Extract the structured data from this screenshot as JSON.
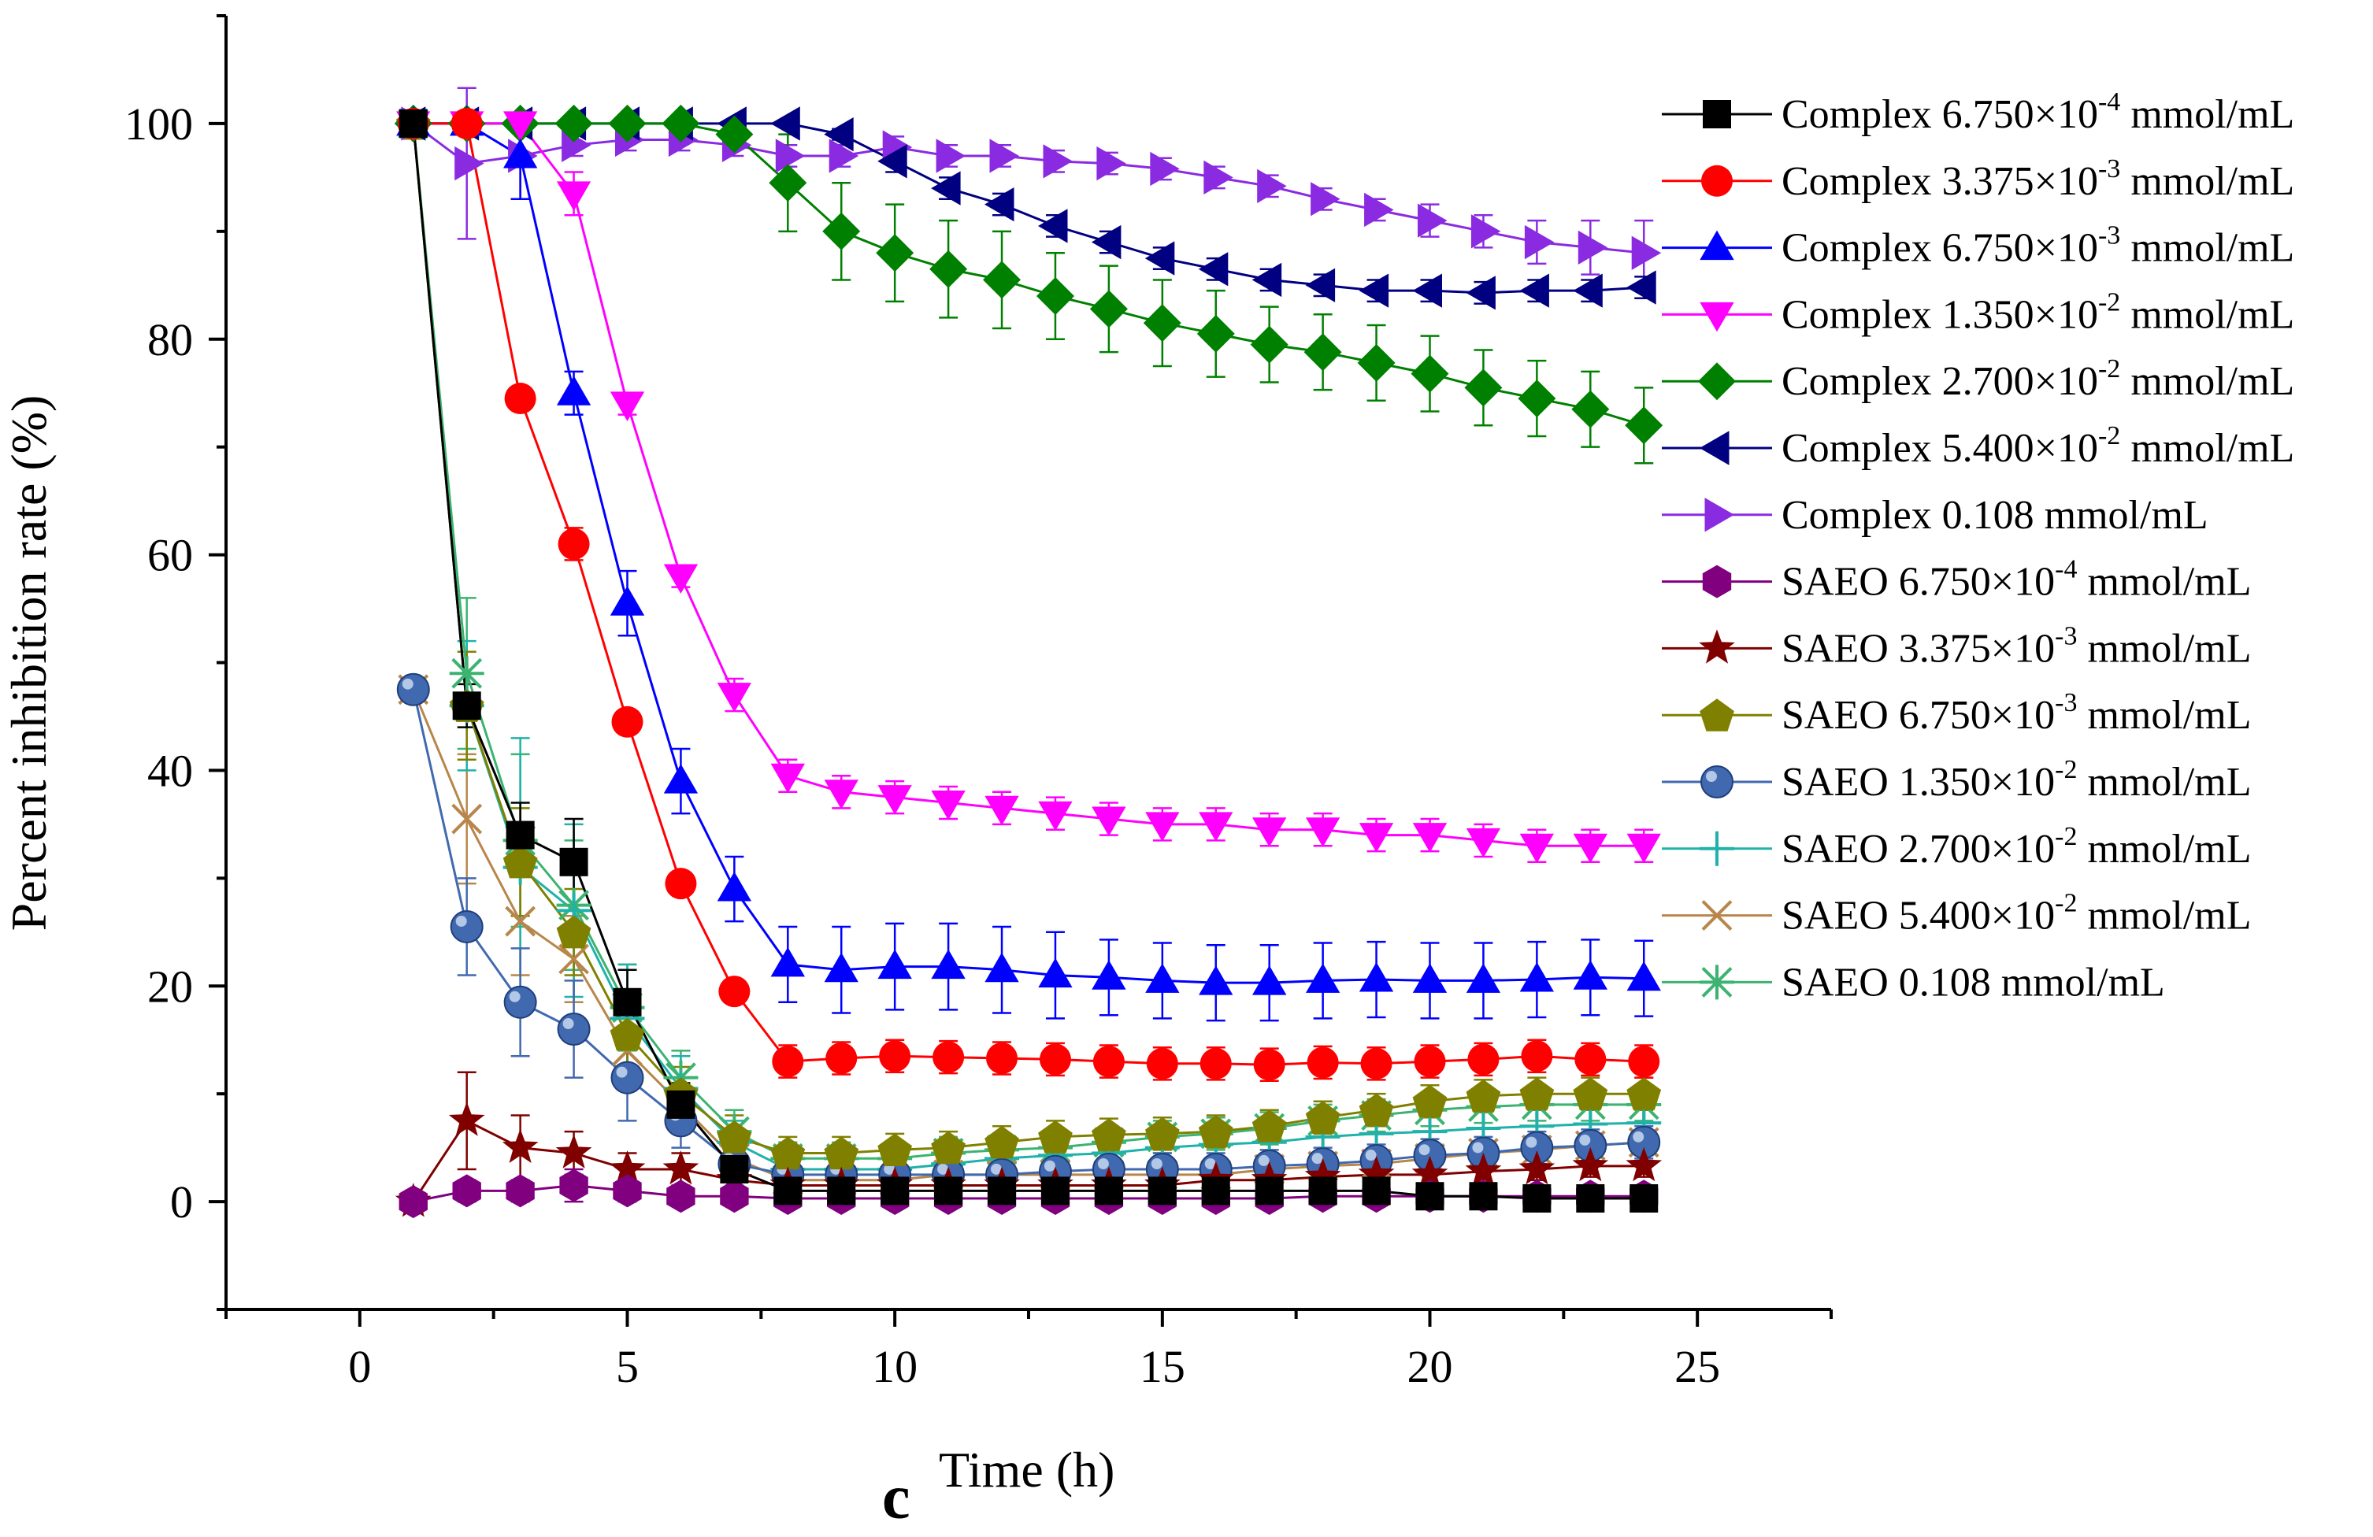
{
  "chart_data": {
    "type": "line",
    "panel_label": "c",
    "title": "",
    "xlabel": "Time (h)",
    "ylabel": "Percent inhibition rate (%)",
    "xlim": [
      -2.5,
      27.5
    ],
    "ylim": [
      -10,
      110
    ],
    "x_ticks": [
      0,
      5,
      10,
      15,
      20,
      25
    ],
    "y_ticks": [
      0,
      20,
      40,
      60,
      80,
      100
    ],
    "grid": false,
    "legend_position": "right",
    "x": [
      1,
      2,
      3,
      4,
      5,
      6,
      7,
      8,
      9,
      10,
      11,
      12,
      13,
      14,
      15,
      16,
      17,
      18,
      19,
      20,
      21,
      22,
      23,
      24
    ],
    "series": [
      {
        "legend": {
          "base": "Complex 6.750×10",
          "exp": "-4",
          "unit": " mmol/mL"
        },
        "color": "#000000",
        "marker": "square",
        "values": [
          100,
          46,
          34,
          31.5,
          18.5,
          9,
          3,
          1,
          1,
          1,
          1,
          1,
          1,
          1,
          1,
          1,
          1,
          1,
          1,
          0.5,
          0.5,
          0.3,
          0.3,
          0.3
        ],
        "errors": [
          0,
          2,
          3,
          4,
          3,
          2,
          1,
          0.5,
          0.5,
          0.5,
          0.5,
          0.5,
          0.5,
          0.5,
          0.5,
          0.5,
          0.5,
          0.5,
          0.5,
          0.5,
          0.5,
          0.5,
          0.5,
          0.5
        ]
      },
      {
        "legend": {
          "base": "Complex 3.375×10",
          "exp": "-3",
          "unit": " mmol/mL"
        },
        "color": "#ff0000",
        "marker": "circle",
        "values": [
          100,
          100,
          74.5,
          61,
          44.5,
          29.5,
          19.5,
          13,
          13.3,
          13.5,
          13.4,
          13.3,
          13.2,
          13,
          12.8,
          12.8,
          12.7,
          12.9,
          12.8,
          13,
          13.2,
          13.5,
          13.2,
          13
        ],
        "errors": [
          0,
          0,
          1,
          1.5,
          1,
          1,
          1,
          1.5,
          1.5,
          1.5,
          1.5,
          1.5,
          1.5,
          1.5,
          1.5,
          1.5,
          1.5,
          1.5,
          1.5,
          1.5,
          1.5,
          1.5,
          1.5,
          1.5
        ]
      },
      {
        "legend": {
          "base": "Complex 6.750×10",
          "exp": "-3",
          "unit": " mmol/mL"
        },
        "color": "#0000ff",
        "marker": "triangle-up",
        "values": [
          100,
          100,
          97,
          75,
          55.5,
          39,
          29,
          22,
          21.5,
          21.8,
          21.8,
          21.5,
          21,
          20.8,
          20.5,
          20.3,
          20.3,
          20.5,
          20.6,
          20.5,
          20.5,
          20.6,
          20.8,
          20.7
        ],
        "errors": [
          0,
          0,
          4,
          2,
          3,
          3,
          3,
          3.5,
          4,
          4,
          4,
          4,
          4,
          3.5,
          3.5,
          3.5,
          3.5,
          3.5,
          3.5,
          3.5,
          3.5,
          3.5,
          3.5,
          3.5
        ]
      },
      {
        "legend": {
          "base": "Complex 1.350×10",
          "exp": "-2",
          "unit": " mmol/mL"
        },
        "color": "#ff00ff",
        "marker": "triangle-down",
        "values": [
          100,
          100,
          100,
          93.5,
          74,
          58,
          47,
          39.5,
          38,
          37.5,
          37,
          36.5,
          36,
          35.5,
          35,
          35,
          34.5,
          34.5,
          34,
          34,
          33.5,
          33,
          33,
          33
        ],
        "errors": [
          0,
          0,
          0,
          2,
          1,
          1,
          1.5,
          1.5,
          1.5,
          1.5,
          1.5,
          1.5,
          1.5,
          1.5,
          1.5,
          1.5,
          1.5,
          1.5,
          1.5,
          1.5,
          1.5,
          1.5,
          1.5,
          1.5
        ]
      },
      {
        "legend": {
          "base": "Complex 2.700×10",
          "exp": "-2",
          "unit": " mmol/mL"
        },
        "color": "#008000",
        "marker": "diamond",
        "values": [
          100,
          100,
          100,
          100,
          100,
          100,
          99,
          94.5,
          90,
          88,
          86.5,
          85.5,
          84,
          82.8,
          81.5,
          80.5,
          79.5,
          78.8,
          77.8,
          76.8,
          75.5,
          74.5,
          73.5,
          72
        ],
        "errors": [
          0,
          0,
          0,
          0,
          0,
          0,
          0.5,
          4.5,
          4.5,
          4.5,
          4.5,
          4.5,
          4,
          4,
          4,
          4,
          3.5,
          3.5,
          3.5,
          3.5,
          3.5,
          3.5,
          3.5,
          3.5
        ]
      },
      {
        "legend": {
          "base": "Complex 5.400×10",
          "exp": "-2",
          "unit": " mmol/mL"
        },
        "color": "#000080",
        "marker": "triangle-left",
        "values": [
          100,
          100,
          100,
          100,
          100,
          100,
          100,
          100,
          99,
          96.5,
          94,
          92.5,
          90.5,
          89,
          87.5,
          86.5,
          85.5,
          85,
          84.5,
          84.5,
          84.3,
          84.5,
          84.5,
          84.8
        ],
        "errors": [
          0,
          0,
          0,
          0,
          0,
          0,
          0,
          0,
          0.5,
          1,
          1,
          1,
          1,
          1,
          1,
          1,
          1,
          1,
          1,
          1,
          1,
          1,
          1,
          1
        ]
      },
      {
        "legend": {
          "base": "Complex 0.108 mmol/mL",
          "exp": "",
          "unit": ""
        },
        "color": "#8a2be2",
        "marker": "triangle-right",
        "values": [
          100,
          96.3,
          97,
          98,
          98.5,
          98.5,
          98,
          97,
          97,
          97.8,
          97,
          97,
          96.5,
          96.3,
          95.8,
          95,
          94.2,
          93,
          92,
          91,
          90,
          89,
          88.5,
          88
        ],
        "errors": [
          0,
          7,
          4,
          1,
          1,
          1,
          1,
          1,
          1,
          1,
          1,
          1,
          1,
          1,
          1,
          1,
          1,
          1,
          1,
          1.5,
          1.5,
          2,
          2.5,
          3
        ]
      },
      {
        "legend": {
          "base": "SAEO 6.750×10",
          "exp": "-4",
          "unit": " mmol/mL"
        },
        "color": "#800080",
        "marker": "hexagon",
        "values": [
          0,
          1,
          1,
          1.5,
          1,
          0.5,
          0.5,
          0.3,
          0.3,
          0.3,
          0.3,
          0.3,
          0.3,
          0.3,
          0.3,
          0.3,
          0.3,
          0.5,
          0.5,
          0.5,
          0.5,
          0.5,
          0.5,
          0.5
        ],
        "errors": [
          0,
          1,
          1,
          1.5,
          1,
          0.5,
          0.5,
          0.3,
          0.3,
          0.3,
          0.3,
          0.3,
          0.3,
          0.3,
          0.3,
          0.3,
          0.3,
          0.3,
          0.3,
          0.3,
          0.3,
          0.3,
          0.3,
          0.3
        ]
      },
      {
        "legend": {
          "base": "SAEO 3.375×10",
          "exp": "-3",
          "unit": " mmol/mL"
        },
        "color": "#800000",
        "marker": "star",
        "values": [
          0,
          7.5,
          5,
          4.5,
          3,
          3,
          2,
          1.5,
          1.5,
          1.5,
          1.5,
          1.5,
          1.5,
          1.5,
          1.5,
          2,
          2,
          2.3,
          2.5,
          2.5,
          2.8,
          3,
          3.3,
          3.3
        ],
        "errors": [
          0,
          4.5,
          3,
          2,
          1.5,
          1.5,
          1,
          1,
          1,
          1,
          1,
          1,
          1,
          1,
          1,
          1,
          1,
          1,
          1,
          1,
          1,
          1,
          1,
          1
        ]
      },
      {
        "legend": {
          "base": "SAEO 6.750×10",
          "exp": "-3",
          "unit": " mmol/mL"
        },
        "color": "#808000",
        "marker": "pentagon",
        "values": [
          100,
          46,
          31.5,
          25,
          15.5,
          10,
          6,
          4.5,
          4.5,
          4.8,
          5,
          5.5,
          6,
          6.2,
          6.3,
          6.5,
          7,
          7.8,
          8.5,
          9.3,
          9.8,
          10,
          10,
          10
        ],
        "errors": [
          0,
          5,
          5,
          4,
          3,
          2.5,
          2,
          1.5,
          1.5,
          1.5,
          1.5,
          1.5,
          1.5,
          1.5,
          1.5,
          1.5,
          1.5,
          1.5,
          1.5,
          1.5,
          1.5,
          1.5,
          1.5,
          1.5
        ]
      },
      {
        "legend": {
          "base": "SAEO 1.350×10",
          "exp": "-2",
          "unit": " mmol/mL"
        },
        "color": "#4169b0",
        "marker": "sphere",
        "values": [
          47.5,
          25.5,
          18.5,
          16,
          11.5,
          7.5,
          3.5,
          2.5,
          2.5,
          2.5,
          2.5,
          2.5,
          2.8,
          3,
          3,
          3,
          3.3,
          3.5,
          3.8,
          4.3,
          4.5,
          5,
          5.2,
          5.5
        ],
        "errors": [
          0,
          4.5,
          5,
          4.5,
          4,
          2.5,
          2,
          1.5,
          1.5,
          1.5,
          1.5,
          1.5,
          1.5,
          1.5,
          1.5,
          1.5,
          1.5,
          1.5,
          1.5,
          1.5,
          1.5,
          1.5,
          1.5,
          1.5
        ]
      },
      {
        "legend": {
          "base": "SAEO 2.700×10",
          "exp": "-2",
          "unit": " mmol/mL"
        },
        "color": "#20b2aa",
        "marker": "plus",
        "values": [
          100,
          46,
          31,
          27,
          17,
          10.5,
          5.5,
          3,
          3,
          3,
          3.5,
          4,
          4.3,
          4.5,
          5,
          5.3,
          5.5,
          6,
          6.3,
          6.5,
          6.8,
          7,
          7.2,
          7.3
        ],
        "errors": [
          0,
          6,
          12,
          8,
          5,
          3,
          2,
          1.5,
          1.5,
          1.5,
          1.5,
          1.5,
          1.5,
          1.5,
          1.5,
          1.5,
          1.5,
          1.5,
          1.5,
          1.5,
          1.5,
          1.5,
          1.5,
          1.5
        ]
      },
      {
        "legend": {
          "base": "SAEO 5.400×10",
          "exp": "-2",
          "unit": " mmol/mL"
        },
        "color": "#b8864b",
        "marker": "x",
        "values": [
          47.5,
          35.5,
          26,
          22.5,
          14,
          9,
          4,
          2,
          2,
          2,
          2.5,
          2.5,
          2.5,
          2.5,
          2.5,
          2.5,
          3,
          3.3,
          3.5,
          4,
          4.5,
          4.8,
          5.2,
          5.5
        ],
        "errors": [
          0,
          6,
          5,
          4,
          3,
          2,
          1.5,
          1,
          1,
          1,
          1,
          1,
          1,
          1,
          1,
          1,
          1,
          1,
          1,
          1,
          1,
          1,
          1,
          1
        ]
      },
      {
        "legend": {
          "base": "SAEO 0.108 mmol/mL",
          "exp": "",
          "unit": ""
        },
        "color": "#3cb371",
        "marker": "asterisk",
        "values": [
          100,
          49,
          33.5,
          27.5,
          18,
          11.5,
          6.5,
          4,
          4,
          4,
          4.5,
          4.8,
          5,
          5.5,
          6,
          6.3,
          6.8,
          7.5,
          8,
          8.5,
          8.8,
          9,
          9,
          9
        ],
        "errors": [
          0,
          7,
          8,
          6,
          4,
          2.5,
          2,
          1.5,
          1.5,
          1.5,
          1.5,
          1.5,
          1.5,
          1.5,
          1.5,
          1.5,
          1.5,
          1.5,
          1.5,
          1.5,
          1.5,
          1.5,
          1.5,
          1.5
        ]
      }
    ]
  }
}
